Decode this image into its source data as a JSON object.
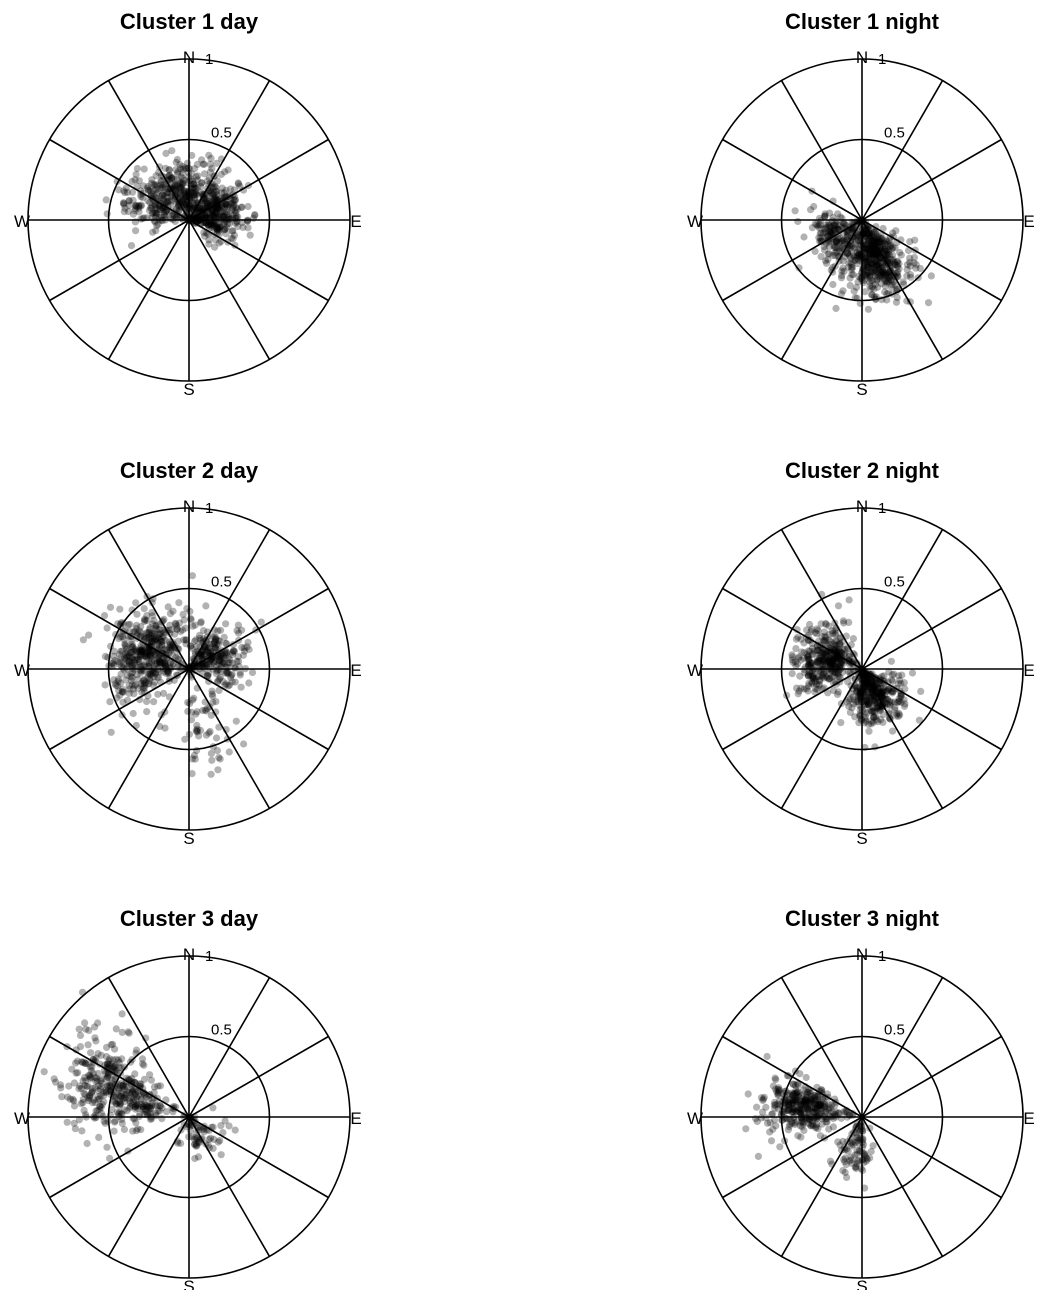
{
  "chart_data": [
    {
      "type": "scatter",
      "coordinate_system": "polar",
      "title": "Cluster 1 day",
      "radial_max": 1,
      "radial_ticks": [
        0.5,
        1
      ],
      "radial_tick_labels": [
        "0.5",
        "1"
      ],
      "direction_labels": {
        "north": "N",
        "east": "E",
        "south": "S",
        "west": "W"
      },
      "spokes_every_deg": 30,
      "point_color": "#000000",
      "point_opacity": 0.3,
      "point_count": 700,
      "points_summary": [
        {
          "component": "main",
          "share": 0.45,
          "mean_bearing_deg": 75,
          "mean_radius": 0.18,
          "spread_bearing_deg": 28,
          "spread_radius": 0.09
        },
        {
          "component": "secondary",
          "share": 0.4,
          "mean_bearing_deg": 345,
          "mean_radius": 0.22,
          "spread_bearing_deg": 35,
          "spread_radius": 0.1
        },
        {
          "component": "west",
          "share": 0.15,
          "mean_bearing_deg": 290,
          "mean_radius": 0.28,
          "spread_bearing_deg": 15,
          "spread_radius": 0.12
        }
      ]
    },
    {
      "type": "scatter",
      "coordinate_system": "polar",
      "title": "Cluster 1 night",
      "radial_max": 1,
      "radial_ticks": [
        0.5,
        1
      ],
      "radial_tick_labels": [
        "0.5",
        "1"
      ],
      "direction_labels": {
        "north": "N",
        "east": "E",
        "south": "S",
        "west": "W"
      },
      "spokes_every_deg": 30,
      "point_color": "#000000",
      "point_opacity": 0.3,
      "point_count": 650,
      "points_summary": [
        {
          "component": "main",
          "share": 0.7,
          "mean_bearing_deg": 160,
          "mean_radius": 0.28,
          "spread_bearing_deg": 18,
          "spread_radius": 0.12
        },
        {
          "component": "west",
          "share": 0.3,
          "mean_bearing_deg": 235,
          "mean_radius": 0.2,
          "spread_bearing_deg": 25,
          "spread_radius": 0.09
        }
      ]
    },
    {
      "type": "scatter",
      "coordinate_system": "polar",
      "title": "Cluster 2 day",
      "radial_max": 1,
      "radial_ticks": [
        0.5,
        1
      ],
      "radial_tick_labels": [
        "0.5",
        "1"
      ],
      "direction_labels": {
        "north": "N",
        "east": "E",
        "south": "S",
        "west": "W"
      },
      "spokes_every_deg": 30,
      "point_color": "#000000",
      "point_opacity": 0.3,
      "point_count": 750,
      "points_summary": [
        {
          "component": "west",
          "share": 0.6,
          "mean_bearing_deg": 290,
          "mean_radius": 0.3,
          "spread_bearing_deg": 30,
          "spread_radius": 0.12
        },
        {
          "component": "east",
          "share": 0.33,
          "mean_bearing_deg": 65,
          "mean_radius": 0.2,
          "spread_bearing_deg": 30,
          "spread_radius": 0.1
        },
        {
          "component": "south",
          "share": 0.07,
          "mean_bearing_deg": 165,
          "mean_radius": 0.35,
          "spread_bearing_deg": 12,
          "spread_radius": 0.2
        }
      ]
    },
    {
      "type": "scatter",
      "coordinate_system": "polar",
      "title": "Cluster 2 night",
      "radial_max": 1,
      "radial_ticks": [
        0.5,
        1
      ],
      "radial_tick_labels": [
        "0.5",
        "1"
      ],
      "direction_labels": {
        "north": "N",
        "east": "E",
        "south": "S",
        "west": "W"
      },
      "spokes_every_deg": 30,
      "point_color": "#000000",
      "point_opacity": 0.3,
      "point_count": 700,
      "points_summary": [
        {
          "component": "northwest",
          "share": 0.5,
          "mean_bearing_deg": 285,
          "mean_radius": 0.25,
          "spread_bearing_deg": 22,
          "spread_radius": 0.1
        },
        {
          "component": "southeast",
          "share": 0.5,
          "mean_bearing_deg": 155,
          "mean_radius": 0.2,
          "spread_bearing_deg": 25,
          "spread_radius": 0.1
        }
      ]
    },
    {
      "type": "scatter",
      "coordinate_system": "polar",
      "title": "Cluster 3 day",
      "radial_max": 1,
      "radial_ticks": [
        0.5,
        1
      ],
      "radial_tick_labels": [
        "0.5",
        "1"
      ],
      "direction_labels": {
        "north": "N",
        "east": "E",
        "south": "S",
        "west": "W"
      },
      "spokes_every_deg": 30,
      "point_color": "#000000",
      "point_opacity": 0.3,
      "point_count": 450,
      "points_summary": [
        {
          "component": "west-northwest",
          "share": 0.85,
          "mean_bearing_deg": 290,
          "mean_radius": 0.5,
          "spread_bearing_deg": 14,
          "spread_radius": 0.18
        },
        {
          "component": "southeast",
          "share": 0.15,
          "mean_bearing_deg": 150,
          "mean_radius": 0.15,
          "spread_bearing_deg": 30,
          "spread_radius": 0.08
        }
      ]
    },
    {
      "type": "scatter",
      "coordinate_system": "polar",
      "title": "Cluster 3 night",
      "radial_max": 1,
      "radial_ticks": [
        0.5,
        1
      ],
      "radial_tick_labels": [
        "0.5",
        "1"
      ],
      "direction_labels": {
        "north": "N",
        "east": "E",
        "south": "S",
        "west": "W"
      },
      "spokes_every_deg": 30,
      "point_color": "#000000",
      "point_opacity": 0.3,
      "point_count": 420,
      "points_summary": [
        {
          "component": "west-northwest",
          "share": 0.8,
          "mean_bearing_deg": 280,
          "mean_radius": 0.38,
          "spread_bearing_deg": 12,
          "spread_radius": 0.12
        },
        {
          "component": "south",
          "share": 0.2,
          "mean_bearing_deg": 190,
          "mean_radius": 0.22,
          "spread_bearing_deg": 15,
          "spread_radius": 0.1
        }
      ]
    }
  ]
}
